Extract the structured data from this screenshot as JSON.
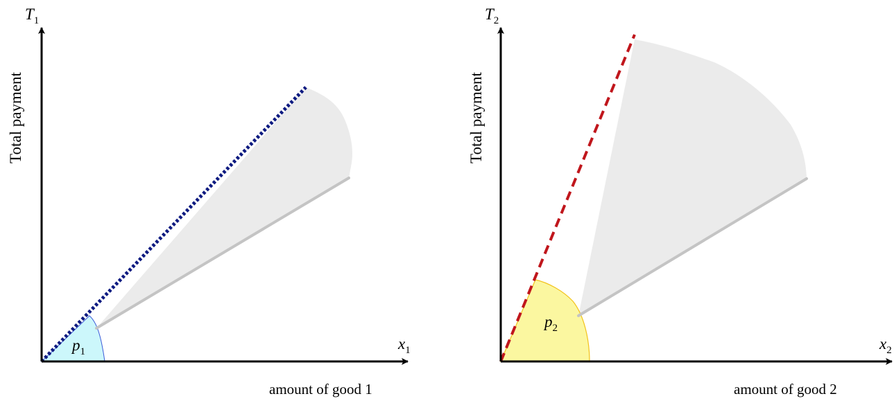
{
  "panels": [
    {
      "y_axis_symbol": "T",
      "y_axis_subscript": "1",
      "y_axis_title": "Total payment",
      "x_axis_symbol": "x",
      "x_axis_subscript": "1",
      "x_axis_title": "amount of good 1",
      "price_symbol": "p",
      "price_subscript": "1",
      "price_line_style": "dotted",
      "price_line_color": "#0d1a80",
      "price_sector_fill": "#ccf7fb",
      "price_sector_stroke": "#3a5ad8",
      "cone_fill": "#ebebeb",
      "lower_ray_color": "#c4c4c4"
    },
    {
      "y_axis_symbol": "T",
      "y_axis_subscript": "2",
      "y_axis_title": "Total payment",
      "x_axis_symbol": "x",
      "x_axis_subscript": "2",
      "x_axis_title": "amount of good 2",
      "price_symbol": "p",
      "price_subscript": "2",
      "price_line_style": "dashed",
      "price_line_color": "#c0161c",
      "price_sector_fill": "#fbf7a0",
      "price_sector_stroke": "#f2c21a",
      "cone_fill": "#ebebeb",
      "lower_ray_color": "#c4c4c4"
    }
  ]
}
